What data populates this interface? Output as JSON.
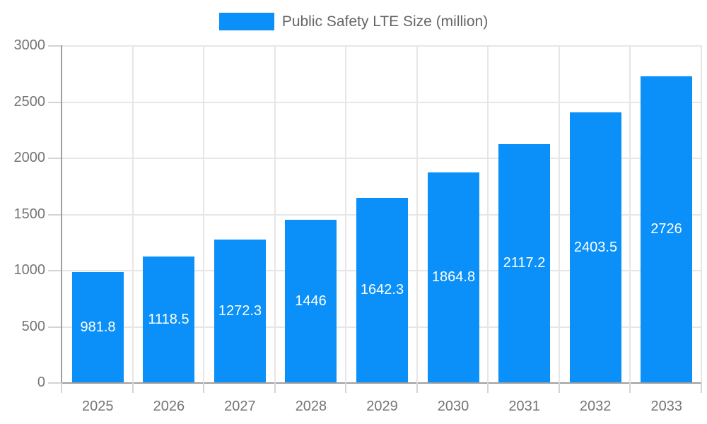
{
  "legend": {
    "position": "top",
    "label": "Public Safety LTE Size (million)"
  },
  "chart_data": {
    "type": "bar",
    "title": "Public Safety LTE Size (million)",
    "series_name": "Public Safety LTE Size (million)",
    "categories": [
      "2025",
      "2026",
      "2027",
      "2028",
      "2029",
      "2030",
      "2031",
      "2032",
      "2033"
    ],
    "values": [
      981.8,
      1118.5,
      1272.3,
      1446,
      1642.3,
      1864.8,
      2117.2,
      2403.5,
      2726
    ],
    "xlabel": "",
    "ylabel": "",
    "ylim": [
      0,
      3000
    ],
    "ytick_step": 500,
    "yticks": [
      "0",
      "500",
      "1000",
      "1500",
      "2000",
      "2500",
      "3000"
    ],
    "grid": true,
    "value_labels": "inside-center",
    "legend_position": "top-center",
    "colors": {
      "bar": "#0A90F8",
      "grid": "#E6E6E6",
      "axis": "#9E9E9E",
      "tick_mark": "#D4D4D4",
      "axis_text": "#757575",
      "legend_text": "#666666",
      "value_label_text": "#FFFFFF",
      "background": "#FFFFFF"
    }
  }
}
